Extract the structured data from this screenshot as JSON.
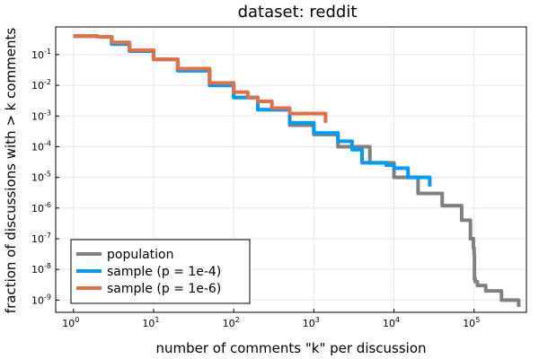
{
  "chart_data": {
    "type": "line",
    "title": "dataset: reddit",
    "xlabel": "number of comments \"k\" per discussion",
    "ylabel": "fraction of discussions with > k comments",
    "xscale": "log",
    "yscale": "log",
    "xlim": [
      0.6,
      450000
    ],
    "ylim": [
      4e-10,
      0.8
    ],
    "grid": true,
    "legend_position": "bottom-left",
    "x_ticks": [
      {
        "base": "10",
        "exp": "0",
        "value": 1
      },
      {
        "base": "10",
        "exp": "1",
        "value": 10
      },
      {
        "base": "10",
        "exp": "2",
        "value": 100
      },
      {
        "base": "10",
        "exp": "3",
        "value": 1000
      },
      {
        "base": "10",
        "exp": "4",
        "value": 10000
      },
      {
        "base": "10",
        "exp": "5",
        "value": 100000
      }
    ],
    "y_ticks": [
      {
        "base": "10",
        "exp": "-1",
        "value": 0.1
      },
      {
        "base": "10",
        "exp": "-2",
        "value": 0.01
      },
      {
        "base": "10",
        "exp": "-3",
        "value": 0.001
      },
      {
        "base": "10",
        "exp": "-4",
        "value": 0.0001
      },
      {
        "base": "10",
        "exp": "-5",
        "value": 1e-05
      },
      {
        "base": "10",
        "exp": "-6",
        "value": 1e-06
      },
      {
        "base": "10",
        "exp": "-7",
        "value": 1e-07
      },
      {
        "base": "10",
        "exp": "-8",
        "value": 1e-08
      },
      {
        "base": "10",
        "exp": "-9",
        "value": 1e-09
      }
    ],
    "series": [
      {
        "name": "population",
        "color": "#808080",
        "width": 4,
        "points": [
          [
            1,
            0.4
          ],
          [
            2,
            0.38
          ],
          [
            3,
            0.22
          ],
          [
            5,
            0.13
          ],
          [
            10,
            0.07
          ],
          [
            20,
            0.03
          ],
          [
            50,
            0.01
          ],
          [
            100,
            0.004
          ],
          [
            200,
            0.0016
          ],
          [
            500,
            0.0005
          ],
          [
            1000,
            0.00025
          ],
          [
            2000,
            0.0001
          ],
          [
            5000,
            3e-05
          ],
          [
            10000,
            1e-05
          ],
          [
            20000,
            3e-06
          ],
          [
            40000,
            1.2e-06
          ],
          [
            70000,
            4e-07
          ],
          [
            90000,
            1e-07
          ],
          [
            98000,
            5e-08
          ],
          [
            100000,
            3e-08
          ],
          [
            101000,
            5e-09
          ],
          [
            103000,
            4e-09
          ],
          [
            110000,
            3e-09
          ],
          [
            140000,
            2e-09
          ],
          [
            220000,
            1e-09
          ],
          [
            360000,
            1e-09
          ],
          [
            360000,
            6e-10
          ]
        ]
      },
      {
        "name": "sample (p = 1e-4)",
        "color": "#009AFA",
        "width": 4,
        "points": [
          [
            1,
            0.4
          ],
          [
            2,
            0.38
          ],
          [
            3,
            0.22
          ],
          [
            5,
            0.13
          ],
          [
            10,
            0.07
          ],
          [
            20,
            0.03
          ],
          [
            50,
            0.01
          ],
          [
            100,
            0.004
          ],
          [
            200,
            0.0016
          ],
          [
            500,
            0.0006
          ],
          [
            1000,
            0.00028
          ],
          [
            2000,
            0.00015
          ],
          [
            3000,
            8e-05
          ],
          [
            4000,
            3e-05
          ],
          [
            6000,
            3e-05
          ],
          [
            8000,
            2.5e-05
          ],
          [
            10000,
            2e-05
          ],
          [
            15000,
            1e-05
          ],
          [
            20000,
            1e-05
          ],
          [
            28000,
            5e-06
          ]
        ]
      },
      {
        "name": "sample (p = 1e-6)",
        "color": "#E26F46",
        "width": 4,
        "points": [
          [
            1,
            0.4
          ],
          [
            2,
            0.38
          ],
          [
            3,
            0.25
          ],
          [
            5,
            0.14
          ],
          [
            10,
            0.07
          ],
          [
            20,
            0.035
          ],
          [
            50,
            0.012
          ],
          [
            100,
            0.006
          ],
          [
            150,
            0.004
          ],
          [
            200,
            0.003
          ],
          [
            300,
            0.0018
          ],
          [
            500,
            0.0012
          ],
          [
            700,
            0.0012
          ],
          [
            1000,
            0.0012
          ],
          [
            1400,
            0.0006
          ]
        ]
      }
    ]
  }
}
